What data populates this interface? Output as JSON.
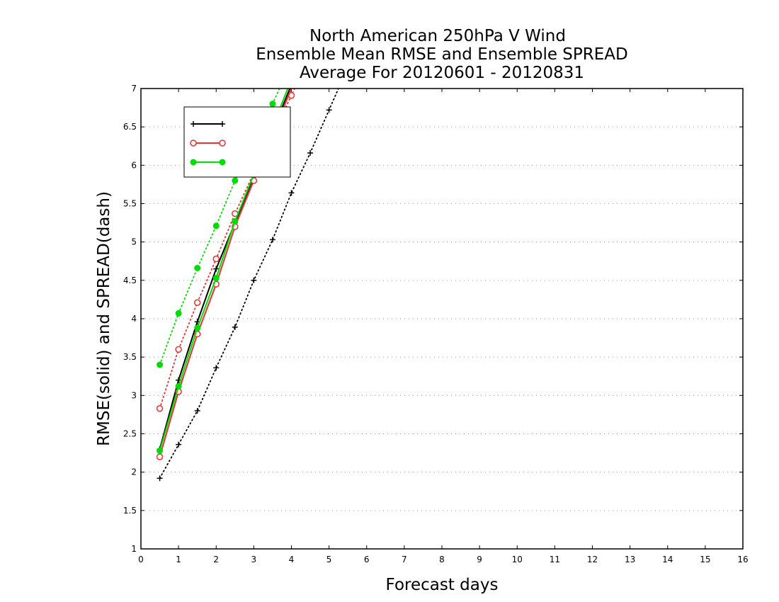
{
  "chart_data": {
    "type": "line",
    "title": [
      "North American 250hPa V Wind",
      "Ensemble Mean RMSE and Ensemble SPREAD",
      "Average For 20120601 - 20120831"
    ],
    "xlabel": "Forecast days",
    "ylabel": "RMSE(solid) and SPREAD(dash)",
    "xlim": [
      0,
      16
    ],
    "ylim": [
      1,
      7
    ],
    "xticks": [
      0,
      1,
      2,
      3,
      4,
      5,
      6,
      7,
      8,
      9,
      10,
      11,
      12,
      13,
      14,
      15,
      16
    ],
    "yticks": [
      1,
      1.5,
      2,
      2.5,
      3,
      3.5,
      4,
      4.5,
      5,
      5.5,
      6,
      6.5,
      7
    ],
    "grid": "horizontal dotted",
    "legend_position": "top-left",
    "series": [
      {
        "name": "",
        "color": "#000000",
        "marker": "plus",
        "rmse": {
          "x": [
            0.5,
            1.0,
            1.5,
            2.0,
            2.5,
            3.0,
            3.5
          ],
          "y": [
            2.3,
            3.2,
            3.96,
            4.65,
            5.25,
            5.85,
            6.45
          ]
        },
        "spread": {
          "x": [
            0.5,
            1.0,
            1.5,
            2.0,
            2.5,
            3.0,
            3.5,
            4.0,
            4.5,
            5.0
          ],
          "y": [
            1.92,
            2.36,
            2.8,
            3.36,
            3.89,
            4.5,
            5.03,
            5.64,
            6.16,
            6.72
          ]
        }
      },
      {
        "name": "",
        "color": "#ee3030",
        "marker": "open-circle",
        "rmse": {
          "x": [
            0.5,
            1.0,
            1.5,
            2.0,
            2.5,
            3.0,
            3.5
          ],
          "y": [
            2.2,
            3.05,
            3.8,
            4.45,
            5.2,
            5.8,
            6.4
          ]
        },
        "spread": {
          "x": [
            0.5,
            1.0,
            1.5,
            2.0,
            2.5,
            3.0,
            3.5,
            4.0
          ],
          "y": [
            2.83,
            3.6,
            4.21,
            4.78,
            5.37,
            5.9,
            6.4,
            6.91
          ]
        }
      },
      {
        "name": "",
        "color": "#00dd00",
        "marker": "filled-circle",
        "rmse": {
          "x": [
            0.5,
            1.0,
            1.5,
            2.0,
            2.5,
            3.0,
            3.5
          ],
          "y": [
            2.28,
            3.12,
            3.88,
            4.53,
            5.27,
            5.88,
            6.5
          ]
        },
        "spread": {
          "x": [
            0.5,
            1.0,
            1.5,
            2.0,
            2.5,
            3.0,
            3.5
          ],
          "y": [
            3.4,
            4.07,
            4.66,
            5.21,
            5.8,
            6.25,
            6.8
          ]
        }
      }
    ]
  }
}
